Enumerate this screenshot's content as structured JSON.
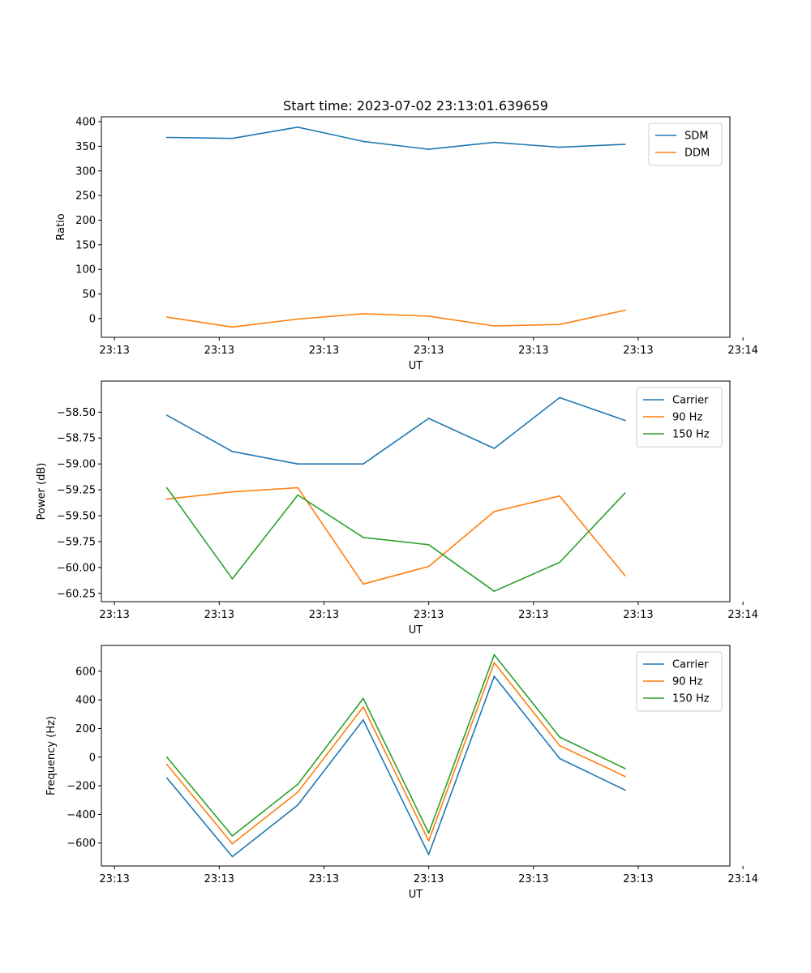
{
  "chart_data": [
    {
      "type": "line",
      "title": "Start time: 2023-07-02 23:13:01.639659",
      "xlabel": "UT",
      "ylabel": "Ratio",
      "ylim": [
        -38,
        410
      ],
      "yticks": [
        0,
        50,
        100,
        150,
        200,
        250,
        300,
        350,
        400
      ],
      "ytick_labels": [
        "0",
        "50",
        "100",
        "150",
        "200",
        "250",
        "300",
        "350",
        "400"
      ],
      "xlim": [
        0,
        9.6
      ],
      "xticks": [
        0.2,
        1.8,
        3.4,
        5.0,
        6.6,
        8.2,
        9.8
      ],
      "xtick_labels": [
        "23:13",
        "23:13",
        "23:13",
        "23:13",
        "23:13",
        "23:13",
        "23:14"
      ],
      "x": [
        1,
        2,
        3,
        4,
        5,
        6,
        7,
        8
      ],
      "legend_position": "upper-right",
      "series": [
        {
          "name": "SDM",
          "color": "#1f77b4",
          "values": [
            368,
            366,
            389,
            360,
            344,
            358,
            348,
            354
          ]
        },
        {
          "name": "DDM",
          "color": "#ff7f0e",
          "values": [
            3,
            -17,
            -1,
            10,
            5,
            -15,
            -12,
            17
          ]
        }
      ]
    },
    {
      "type": "line",
      "title": "",
      "xlabel": "UT",
      "ylabel": "Power (dB)",
      "ylim": [
        -60.33,
        -58.2
      ],
      "yticks": [
        -60.25,
        -60.0,
        -59.75,
        -59.5,
        -59.25,
        -59.0,
        -58.75,
        -58.5
      ],
      "ytick_labels": [
        "−60.25",
        "−60.00",
        "−59.75",
        "−59.50",
        "−59.25",
        "−59.00",
        "−58.75",
        "−58.50"
      ],
      "xlim": [
        0,
        9.6
      ],
      "xticks": [
        0.2,
        1.8,
        3.4,
        5.0,
        6.6,
        8.2,
        9.8
      ],
      "xtick_labels": [
        "23:13",
        "23:13",
        "23:13",
        "23:13",
        "23:13",
        "23:13",
        "23:14"
      ],
      "x": [
        1,
        2,
        3,
        4,
        5,
        6,
        7,
        8
      ],
      "legend_position": "upper-right",
      "series": [
        {
          "name": "Carrier",
          "color": "#1f77b4",
          "values": [
            -58.53,
            -58.88,
            -59.0,
            -59.0,
            -58.56,
            -58.85,
            -58.36,
            -58.58
          ]
        },
        {
          "name": "90 Hz",
          "color": "#ff7f0e",
          "values": [
            -59.34,
            -59.27,
            -59.23,
            -60.16,
            -59.99,
            -59.46,
            -59.31,
            -60.08
          ]
        },
        {
          "name": "150 Hz",
          "color": "#2ca02c",
          "values": [
            -59.23,
            -60.11,
            -59.3,
            -59.71,
            -59.78,
            -60.23,
            -59.95,
            -59.28
          ]
        }
      ]
    },
    {
      "type": "line",
      "title": "",
      "xlabel": "UT",
      "ylabel": "Frequency (Hz)",
      "ylim": [
        -760,
        780
      ],
      "yticks": [
        -600,
        -400,
        -200,
        0,
        200,
        400,
        600
      ],
      "ytick_labels": [
        "−600",
        "−400",
        "−200",
        "0",
        "200",
        "400",
        "600"
      ],
      "xlim": [
        0,
        9.6
      ],
      "xticks": [
        0.2,
        1.8,
        3.4,
        5.0,
        6.6,
        8.2,
        9.8
      ],
      "xtick_labels": [
        "23:13",
        "23:13",
        "23:13",
        "23:13",
        "23:13",
        "23:13",
        "23:14"
      ],
      "x": [
        1,
        2,
        3,
        4,
        5,
        6,
        7,
        8
      ],
      "legend_position": "upper-right",
      "series": [
        {
          "name": "Carrier",
          "color": "#1f77b4",
          "values": [
            -145,
            -695,
            -335,
            260,
            -680,
            565,
            -10,
            -230
          ]
        },
        {
          "name": "90 Hz",
          "color": "#ff7f0e",
          "values": [
            -50,
            -605,
            -245,
            350,
            -585,
            660,
            80,
            -135
          ]
        },
        {
          "name": "150 Hz",
          "color": "#2ca02c",
          "values": [
            0,
            -550,
            -190,
            410,
            -530,
            715,
            140,
            -80
          ]
        }
      ]
    }
  ]
}
